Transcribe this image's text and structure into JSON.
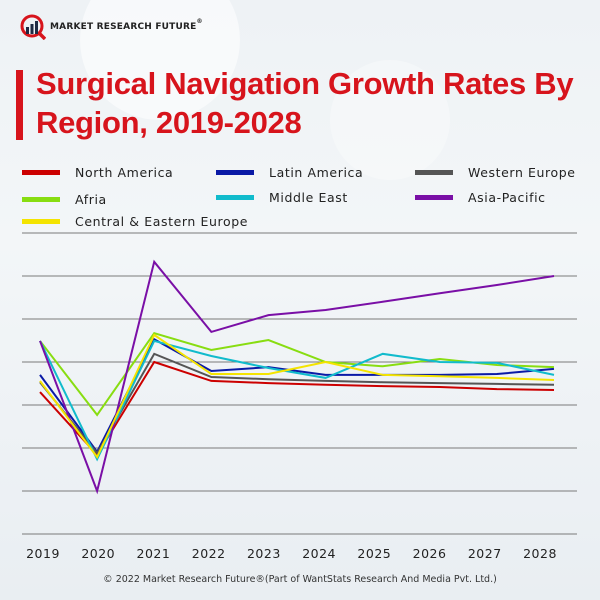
{
  "brand": {
    "name": "MARKET RESEARCH FUTURE",
    "registered": "®"
  },
  "colors": {
    "title": "#d7141c",
    "gridline": "#7a7a7a"
  },
  "legend": [
    {
      "label": "North America",
      "color": "#cc0000"
    },
    {
      "label": "Latin America",
      "color": "#0a1aa6"
    },
    {
      "label": "Western Europe",
      "color": "#555555"
    },
    {
      "label": "Afria",
      "color": "#88dd11"
    },
    {
      "label": "Middle East",
      "color": "#11bbcc"
    },
    {
      "label": "Asia-Pacific",
      "color": "#7a0fa6"
    },
    {
      "label": "Central & Eastern Europe",
      "color": "#f4e400"
    }
  ],
  "footer": "© 2022 Market Research Future®(Part of WantStats Research And Media Pvt. Ltd.)",
  "chart_data": {
    "type": "line",
    "title": "Surgical Navigation Growth Rates By Region, 2019-2028",
    "xlabel": "",
    "ylabel": "",
    "y_axis_note": "No numeric y-axis labels shown; values expressed in gridline units (0 = baseline, 7 = top gridline)",
    "ylim": [
      0,
      7
    ],
    "grid": true,
    "legend_position": "top",
    "x": [
      "2019",
      "2020",
      "2021",
      "2022",
      "2023",
      "2024",
      "2025",
      "2026",
      "2027",
      "2028"
    ],
    "series": [
      {
        "name": "North America",
        "color": "#cc0000",
        "values": [
          3.3,
          1.84,
          4.0,
          3.56,
          3.51,
          3.47,
          3.44,
          3.42,
          3.37,
          3.35
        ]
      },
      {
        "name": "Latin America",
        "color": "#0a1aa6",
        "values": [
          3.7,
          1.91,
          4.53,
          3.79,
          3.88,
          3.7,
          3.7,
          3.7,
          3.72,
          3.84
        ]
      },
      {
        "name": "Western Europe",
        "color": "#555555",
        "values": [
          3.53,
          1.88,
          4.19,
          3.65,
          3.6,
          3.56,
          3.53,
          3.51,
          3.49,
          3.47
        ]
      },
      {
        "name": "Afria",
        "color": "#88dd11",
        "values": [
          4.49,
          2.77,
          4.67,
          4.28,
          4.51,
          4.0,
          3.9,
          4.07,
          3.93,
          3.88
        ]
      },
      {
        "name": "Middle East",
        "color": "#11bbcc",
        "values": [
          4.49,
          1.74,
          4.49,
          4.14,
          3.86,
          3.63,
          4.19,
          4.0,
          3.98,
          3.7
        ]
      },
      {
        "name": "Asia-Pacific",
        "color": "#7a0fa6",
        "values": [
          4.49,
          1.0,
          6.33,
          4.7,
          5.09,
          5.21,
          5.4,
          5.6,
          5.79,
          6.0
        ]
      },
      {
        "name": "Central & Eastern Europe",
        "color": "#f4e400",
        "values": [
          3.56,
          1.79,
          4.63,
          3.72,
          3.72,
          4.0,
          3.7,
          3.67,
          3.63,
          3.58
        ]
      }
    ]
  }
}
